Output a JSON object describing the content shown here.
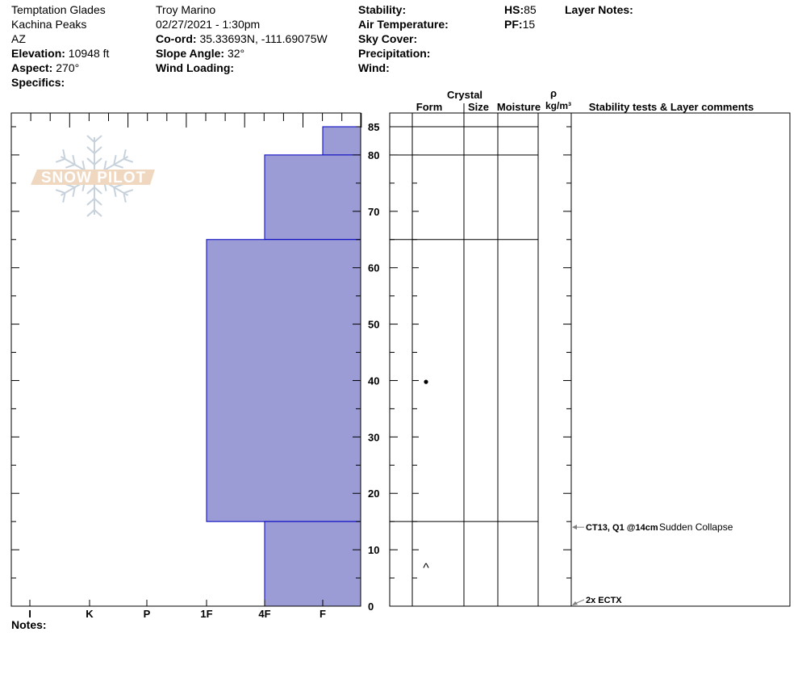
{
  "header": {
    "site": "Temptation Glades",
    "area": "Kachina Peaks",
    "state": "AZ",
    "elevation_label": "Elevation:",
    "elevation": "10948 ft",
    "aspect_label": "Aspect:",
    "aspect": "270°",
    "specifics_label": "Specifics:",
    "observer": "Troy Marino",
    "datetime": "02/27/2021 - 1:30pm",
    "coord_label": "Co-ord:",
    "coord": "35.33693N, -111.69075W",
    "slope_label": "Slope Angle:",
    "slope": "32°",
    "wind_loading_label": "Wind Loading:",
    "stability_label": "Stability:",
    "air_temp_label": "Air Temperature:",
    "sky_label": "Sky Cover:",
    "precip_label": "Precipitation:",
    "wind_label": "Wind:",
    "hs_label": "HS:",
    "hs": "85",
    "pf_label": "PF:",
    "pf": "15",
    "layer_notes_label": "Layer Notes:",
    "notes_label": "Notes:"
  },
  "logo": {
    "text": "SNOW PILOT",
    "band_color": "#f0d8c0",
    "flake_color": "#c8d2dc"
  },
  "columns": {
    "crystal": "Crystal",
    "form": "Form",
    "size": "Size",
    "moisture": "Moisture",
    "rho": "ρ",
    "density_unit": "kg/m³",
    "comments": "Stability tests & Layer comments"
  },
  "hardness_axis": [
    "I",
    "K",
    "P",
    "1F",
    "4F",
    "F"
  ],
  "depth_ticks": [
    "0",
    "10",
    "20",
    "30",
    "40",
    "50",
    "60",
    "70",
    "80",
    "85"
  ],
  "colors": {
    "layer_fill": "#9b9bd6",
    "layer_stroke": "#0000c0",
    "arrow": "#808080"
  },
  "layers": [
    {
      "top": 85,
      "bottom": 80,
      "hardness": "F"
    },
    {
      "top": 80,
      "bottom": 65,
      "hardness": "4F"
    },
    {
      "top": 65,
      "bottom": 15,
      "hardness": "1F"
    },
    {
      "top": 15,
      "bottom": 0,
      "hardness": "4F"
    }
  ],
  "grain_marks": [
    {
      "depth": 40,
      "symbol": "●",
      "name": "rounded-grain-dot"
    },
    {
      "depth": 7.5,
      "symbol": "^",
      "name": "depth-hoar-caret"
    }
  ],
  "stability_tests": [
    {
      "depth": 14,
      "test": "CT13, Q1 @14cm",
      "comment": "Sudden Collapse"
    },
    {
      "depth": 0,
      "test": "2x ECTX",
      "comment": ""
    }
  ]
}
